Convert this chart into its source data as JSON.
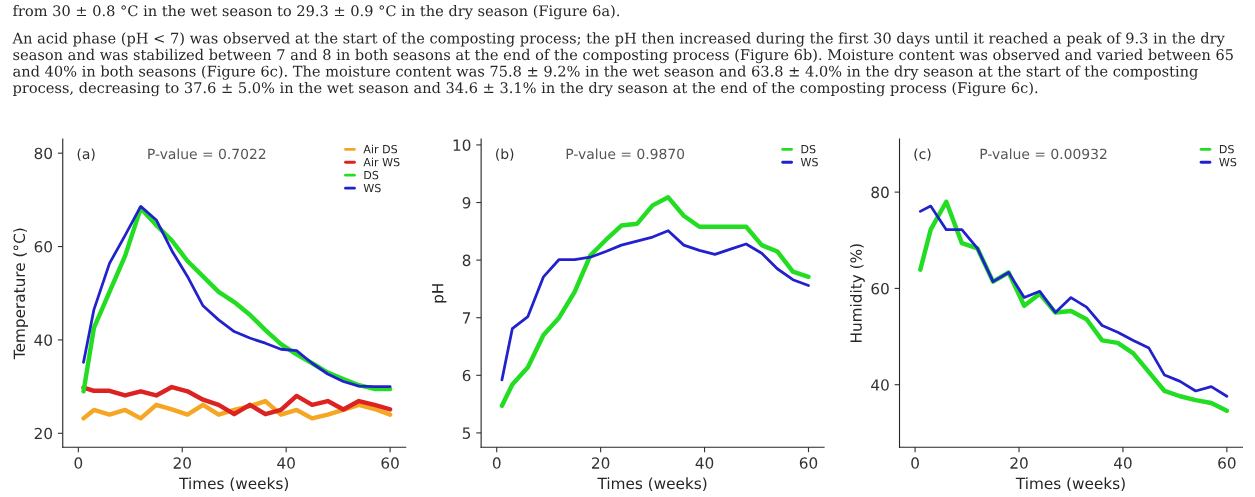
{
  "chart_data": [
    {
      "type": "line",
      "annotations": [
        "(a)",
        "P-value = 0.7022",
        "from 30 ± 0.8 °C in the wet season to 29.3 ± 0.9 °C in the dry season (Figure 6a).",
        "An acid phase (pH < 7) was observed at the start of the composting process; the pH then increased during the first 30 days until it reached a peak of 9.3 in the dry season and was stabilized between 7 and 8 in both seasons at the end of the composting process (Figure 6b). Moisture content was observed and varied between 65 and 40% in both seasons (Figure 6c). The moisture content was 75.8 ± 9.2% in the wet season and 63.8 ± 4.0% in the dry season at the start of the composting process, decreasing to 37.6 ± 5.0% in the wet season and 34.6 ± 3.1% in the dry season at the end of the composting process (Figure 6c)."
      ],
      "xlabel": "Times (weeks)",
      "ylabel": "Temperature (°C)",
      "xlim": [
        -3,
        63
      ],
      "xticks": [
        0,
        20,
        40,
        60
      ],
      "ylim": [
        17,
        83
      ],
      "yticks": [
        20,
        40,
        60,
        80
      ],
      "grid": false,
      "legend": "top right",
      "x": [
        1,
        3,
        6,
        9,
        12,
        15,
        18,
        21,
        24,
        27,
        30,
        33,
        36,
        39,
        42,
        45,
        48,
        51,
        54,
        57,
        60
      ],
      "series": [
        {
          "name": "Air DS",
          "color": "#f5a623",
          "values": [
            23.2,
            25,
            24,
            25,
            23.2,
            26.1,
            25.1,
            24,
            26.1,
            24,
            25,
            25.8,
            26.9,
            24,
            25,
            23.2,
            24,
            25,
            26.1,
            25.2,
            24
          ]
        },
        {
          "name": "Air WS",
          "color": "#dd2222",
          "values": [
            29.8,
            29.1,
            29.1,
            28.1,
            29,
            28.1,
            29.9,
            29,
            27.2,
            26.1,
            24.1,
            26.1,
            24.1,
            25,
            28,
            26.1,
            26.9,
            25.1,
            26.9,
            26.1,
            25.1
          ]
        },
        {
          "name": "DS",
          "color": "#22dd22",
          "values": [
            29,
            42.6,
            50.3,
            58,
            68.2,
            64.6,
            61.3,
            56.9,
            53.6,
            50.3,
            48.1,
            45.4,
            42.1,
            39.1,
            36.9,
            35,
            33,
            31.6,
            30.3,
            29.5,
            29.5
          ]
        },
        {
          "name": "WS",
          "color": "#2222cc",
          "values": [
            35.2,
            46.5,
            56.4,
            62.4,
            68.6,
            65.7,
            59.1,
            53.6,
            47.3,
            44.3,
            41.8,
            40.4,
            39.3,
            38,
            37.7,
            35,
            32.7,
            31.1,
            30.1,
            30,
            30
          ]
        }
      ]
    },
    {
      "type": "line",
      "annotations": [
        "(b)",
        "P-value = 0.9870"
      ],
      "xlabel": "Times (weeks)",
      "ylabel": "pH",
      "xlim": [
        -3,
        63
      ],
      "xticks": [
        0,
        20,
        40,
        60
      ],
      "ylim": [
        4.75,
        10.1
      ],
      "yticks": [
        5,
        6,
        7,
        8,
        9,
        10
      ],
      "grid": false,
      "legend": "top right",
      "x": [
        1,
        3,
        6,
        9,
        12,
        15,
        18,
        21,
        24,
        27,
        30,
        33,
        36,
        39,
        42,
        45,
        48,
        51,
        54,
        57,
        60
      ],
      "series": [
        {
          "name": "DS",
          "color": "#22dd22",
          "values": [
            5.47,
            5.84,
            6.14,
            6.7,
            7.0,
            7.45,
            8.08,
            8.35,
            8.6,
            8.63,
            8.95,
            9.09,
            8.77,
            8.58,
            8.58,
            8.58,
            8.58,
            8.26,
            8.15,
            7.8,
            7.71
          ]
        },
        {
          "name": "WS",
          "color": "#2222cc",
          "values": [
            5.92,
            6.81,
            7.02,
            7.71,
            8.01,
            8.01,
            8.05,
            8.15,
            8.26,
            8.33,
            8.4,
            8.51,
            8.26,
            8.17,
            8.1,
            8.19,
            8.28,
            8.12,
            7.85,
            7.66,
            7.56
          ]
        }
      ]
    },
    {
      "type": "line",
      "annotations": [
        "(c)",
        "P-value = 0.00932"
      ],
      "xlabel": "Times (weeks)",
      "ylabel": "Humidity (%)",
      "xlim": [
        -3,
        63
      ],
      "xticks": [
        0,
        20,
        40,
        60
      ],
      "ylim": [
        27,
        91
      ],
      "yticks": [
        40,
        60,
        80
      ],
      "grid": false,
      "legend": "top right",
      "x": [
        1,
        3,
        6,
        9,
        12,
        15,
        18,
        21,
        24,
        27,
        30,
        33,
        36,
        39,
        42,
        45,
        48,
        51,
        54,
        57,
        60
      ],
      "series": [
        {
          "name": "DS",
          "color": "#22dd22",
          "values": [
            63.9,
            72.2,
            78,
            69.4,
            68.3,
            61.4,
            63.3,
            56.4,
            58.9,
            55,
            55.3,
            53.6,
            49.2,
            48.7,
            46.5,
            42.6,
            38.7,
            37.6,
            36.8,
            36.2,
            34.6
          ]
        },
        {
          "name": "WS",
          "color": "#2222cc",
          "values": [
            76,
            77.1,
            72.2,
            72.2,
            68.3,
            61.4,
            63.3,
            58.1,
            59.4,
            55,
            58.1,
            56.1,
            52.3,
            50.9,
            49.2,
            47.6,
            42,
            40.7,
            38.7,
            39.6,
            37.6
          ]
        }
      ]
    }
  ]
}
